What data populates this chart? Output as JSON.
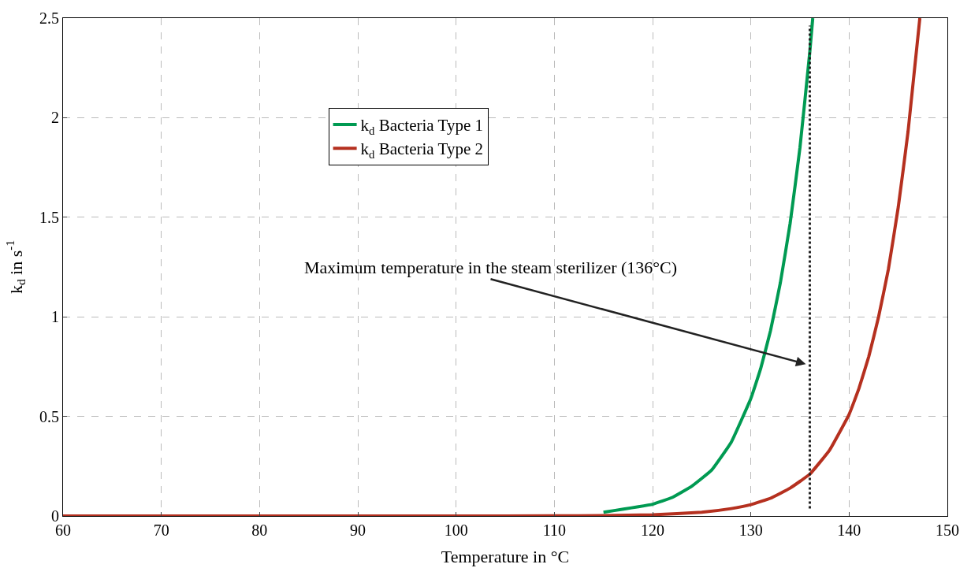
{
  "chart_data": {
    "type": "line",
    "xlabel": "Temperature in °C",
    "ylabel": "k$_{d}$ in s$^{-1}$",
    "series": [
      {
        "name": "k$_{d}$ Bacteria Type 1",
        "color": "#009a52",
        "x": [
          115,
          120,
          122,
          124,
          126,
          128,
          130,
          131,
          132,
          133,
          134,
          135,
          136,
          136.3
        ],
        "values": [
          0.019,
          0.059,
          0.093,
          0.15,
          0.23,
          0.37,
          0.59,
          0.74,
          0.93,
          1.17,
          1.47,
          1.85,
          2.33,
          2.5
        ]
      },
      {
        "name": "k$_{d}$ Bacteria Type 2",
        "color": "#b5301f",
        "x": [
          60,
          80,
          100,
          110,
          115,
          120,
          125,
          128,
          130,
          132,
          134,
          136,
          138,
          140,
          141,
          142,
          143,
          144,
          145,
          146,
          147.2
        ],
        "values": [
          0,
          0,
          0,
          0.001,
          0.002,
          0.006,
          0.019,
          0.037,
          0.057,
          0.089,
          0.14,
          0.21,
          0.33,
          0.51,
          0.64,
          0.8,
          1.0,
          1.24,
          1.55,
          1.93,
          2.5
        ]
      }
    ],
    "xlim": [
      60,
      150
    ],
    "xticks": [
      60,
      70,
      80,
      90,
      100,
      110,
      120,
      130,
      140,
      150
    ],
    "ylim": [
      0,
      2.5
    ],
    "yticks": [
      0,
      0.5,
      1,
      1.5,
      2,
      2.5
    ],
    "ref_lines": [
      {
        "axis": "x",
        "value": 136,
        "color": "#222222",
        "line_style": "dotted"
      }
    ],
    "annotations": [
      "Maximum temperature in the steam sterilizer (136°C)"
    ],
    "grid": true,
    "legend": "top",
    "line_style": "solid",
    "marker": "none"
  }
}
